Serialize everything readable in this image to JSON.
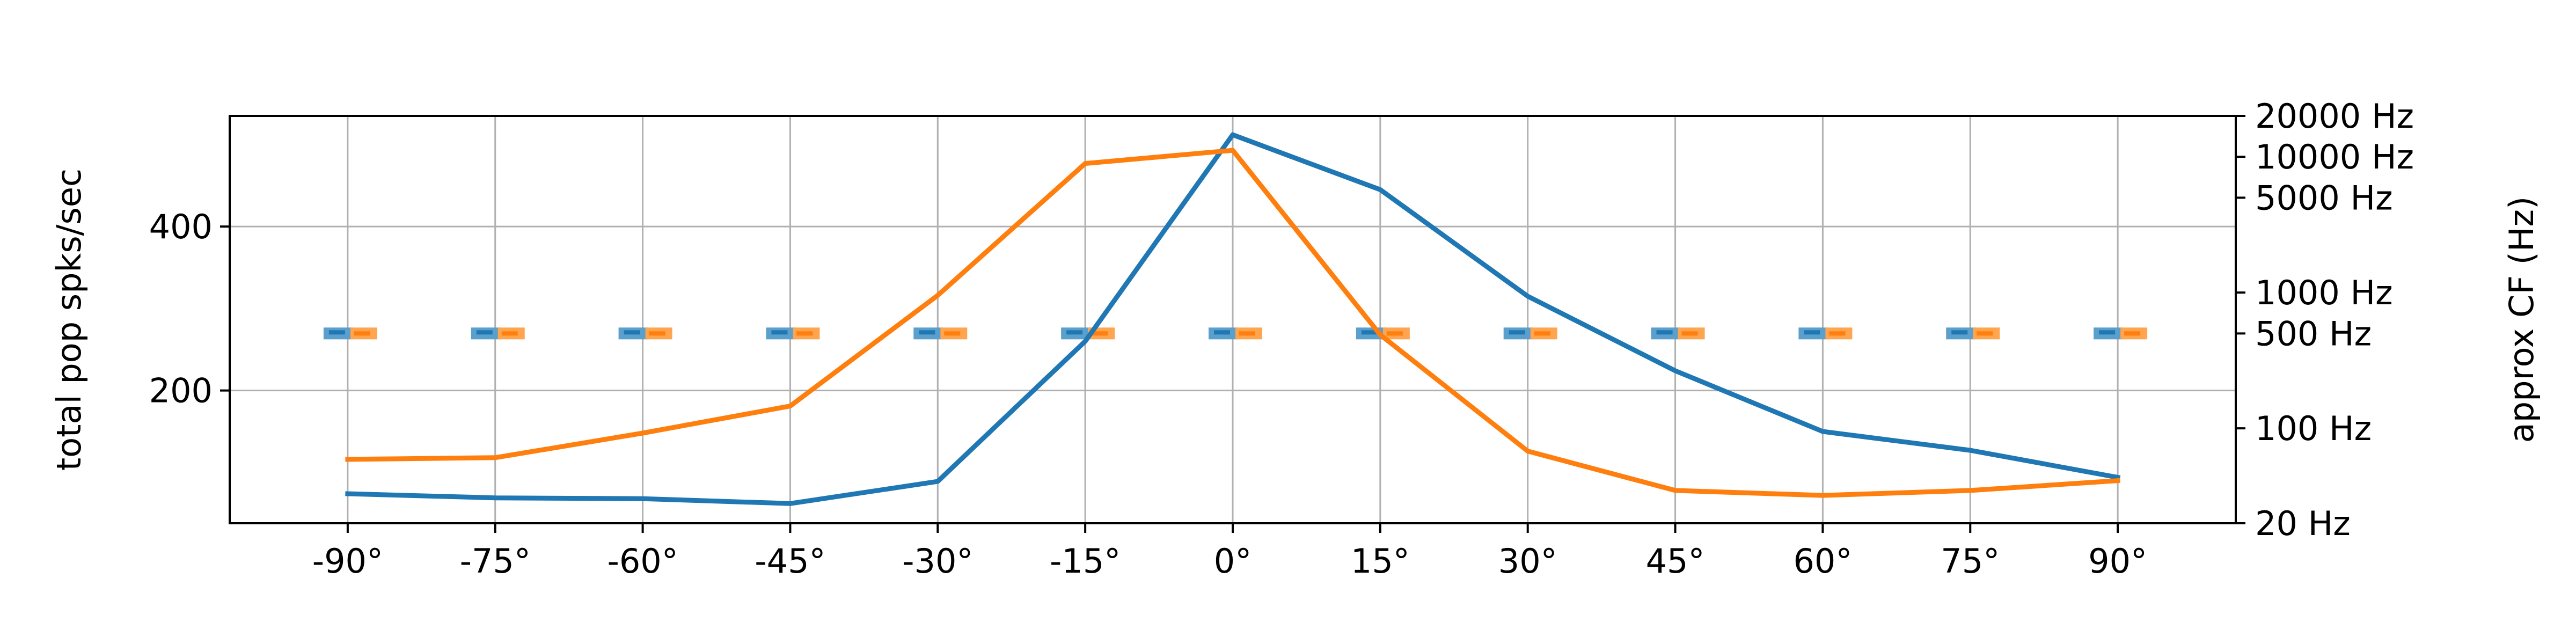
{
  "chart_data": {
    "type": "line",
    "xlabel": "",
    "ylabel": "total pop spks/sec",
    "y2label": "approx CF (Hz)",
    "x_ticks": [
      -90,
      -75,
      -60,
      -45,
      -30,
      -15,
      0,
      15,
      30,
      45,
      60,
      75,
      90
    ],
    "x_tick_labels": [
      "-90°",
      "-75°",
      "-60°",
      "-45°",
      "-30°",
      "-15°",
      "0°",
      "15°",
      "30°",
      "45°",
      "60°",
      "75°",
      "90°"
    ],
    "xlim": [
      -102,
      102
    ],
    "y_ticks": [
      200,
      400
    ],
    "y_tick_labels": [
      "200",
      "400"
    ],
    "ylim": [
      38,
      535
    ],
    "y2_ticks": [
      20,
      100,
      500,
      1000,
      5000,
      10000,
      20000
    ],
    "y2_tick_labels": [
      "20 Hz",
      "100 Hz",
      "500 Hz",
      "1000 Hz",
      "5000 Hz",
      "10000 Hz",
      "20000 Hz"
    ],
    "y2_scale": "log",
    "y2lim": [
      20,
      20000
    ],
    "grid": true,
    "colors": {
      "blue": "#1f77b4",
      "orange": "#ff7f0e",
      "blue_light": "#5b9fcc",
      "orange_light": "#ffa44f"
    },
    "series": [
      {
        "color": "blue",
        "x": [
          -90,
          -75,
          -60,
          -45,
          -30,
          -15,
          0,
          15,
          30,
          45,
          60,
          75,
          90
        ],
        "values": [
          74,
          69,
          68,
          62,
          89,
          260,
          512,
          445,
          315,
          224,
          150,
          127,
          94
        ]
      },
      {
        "color": "orange",
        "x": [
          -90,
          -75,
          -60,
          -45,
          -30,
          -15,
          0,
          15,
          30,
          45,
          60,
          75,
          90
        ],
        "values": [
          116,
          118,
          148,
          181,
          316,
          477,
          493,
          268,
          126,
          78,
          72,
          78,
          90
        ]
      }
    ],
    "spike_rasters": {
      "cf_hz": 500,
      "note": "short horizontal dash clusters at each azimuth, both colours"
    }
  }
}
